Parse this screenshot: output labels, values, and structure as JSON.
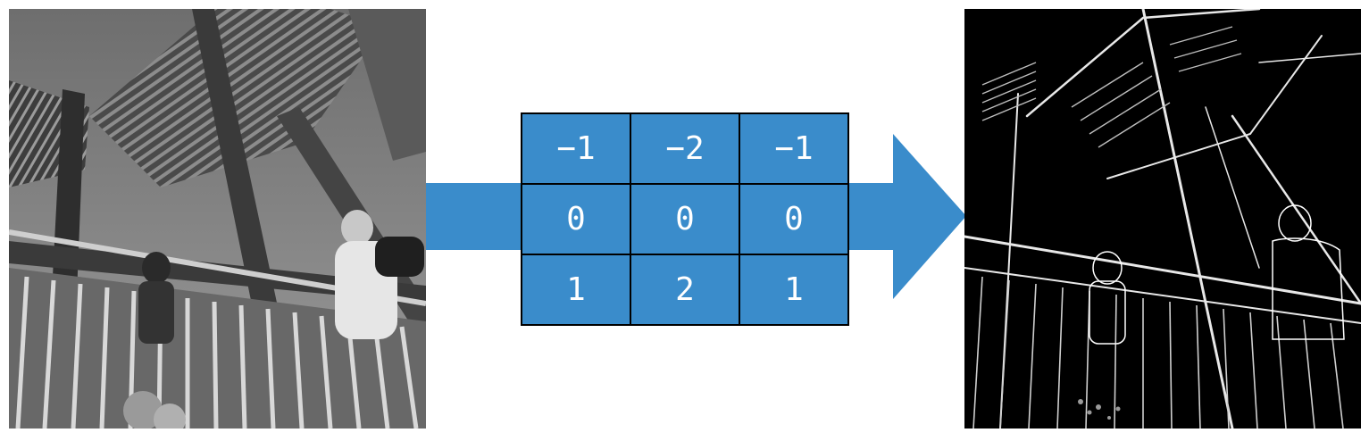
{
  "kernel": {
    "rows": [
      [
        "−1",
        "−2",
        "−1"
      ],
      [
        "0",
        "0",
        "0"
      ],
      [
        "1",
        "2",
        "1"
      ]
    ]
  },
  "colors": {
    "accent": "#3a8ccb",
    "cell_border": "#000000",
    "cell_text": "#ffffff",
    "background": "#ffffff"
  },
  "images": {
    "input": "grayscale-staircase-photo",
    "output": "edge-detected-staircase-photo"
  }
}
